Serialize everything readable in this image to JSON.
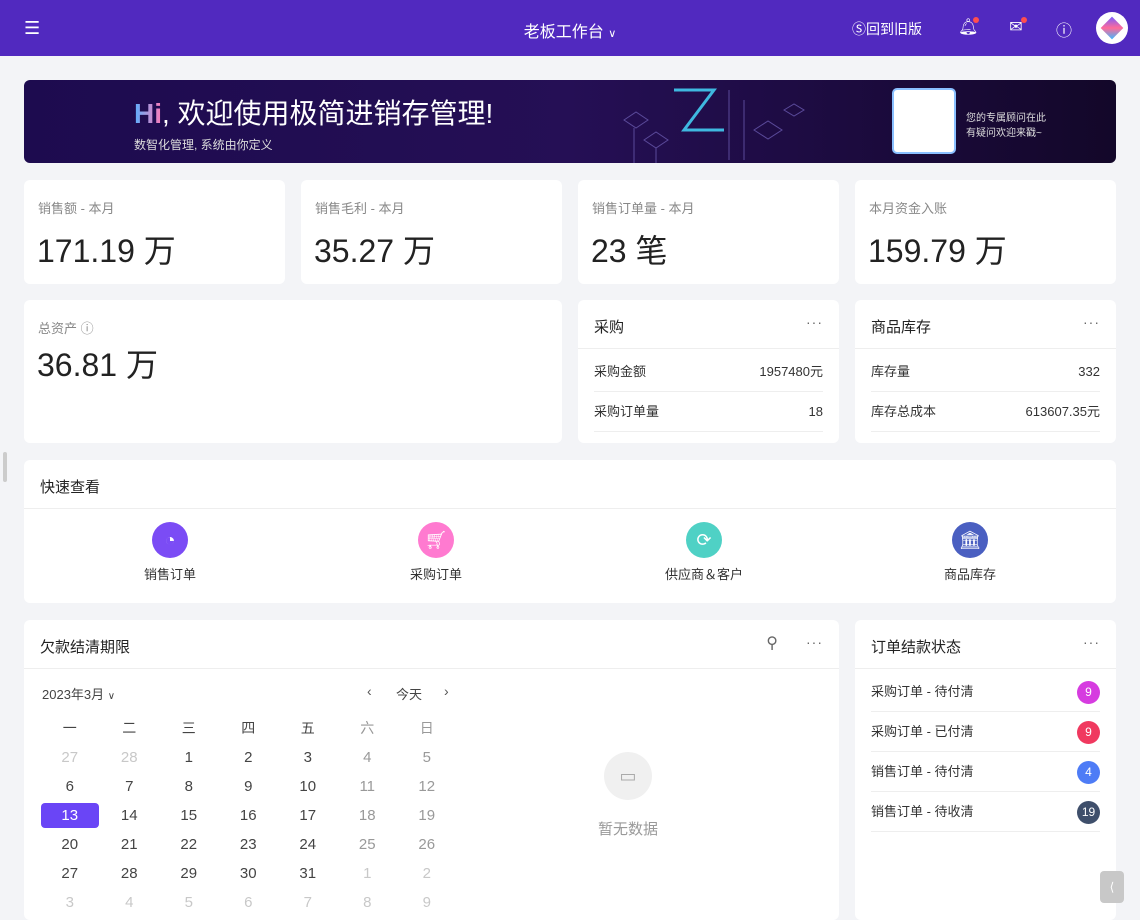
{
  "header": {
    "title": "老板工作台",
    "old_version": "回到旧版",
    "colors": {
      "bg": "#5129bf"
    }
  },
  "banner": {
    "hi": "Hi",
    "welcome": ", 欢迎使用极简进销存管理!",
    "subtitle": "数智化管理, 系统由你定义",
    "advisor_line1": "您的专属顾问在此",
    "advisor_line2": "有疑问欢迎来戳~"
  },
  "kpis": [
    {
      "label": "销售额 - 本月",
      "value": "171.19 万"
    },
    {
      "label": "销售毛利 - 本月",
      "value": "35.27 万"
    },
    {
      "label": "销售订单量 - 本月",
      "value": "23 笔"
    },
    {
      "label": "本月资金入账",
      "value": "159.79 万"
    }
  ],
  "total_assets": {
    "label": "总资产",
    "value": "36.81 万"
  },
  "purchase": {
    "title": "采购",
    "rows": [
      {
        "k": "采购金额",
        "v": "1957480元"
      },
      {
        "k": "采购订单量",
        "v": "18"
      }
    ]
  },
  "inventory": {
    "title": "商品库存",
    "rows": [
      {
        "k": "库存量",
        "v": "332"
      },
      {
        "k": "库存总成本",
        "v": "613607.35元"
      }
    ]
  },
  "quick": {
    "title": "快速查看",
    "items": [
      {
        "label": "销售订单",
        "icon": "pie-chart-icon",
        "color": "#7b4cf5"
      },
      {
        "label": "采购订单",
        "icon": "cart-icon",
        "color": "#ff7ad0"
      },
      {
        "label": "供应商＆客户",
        "icon": "refresh-icon",
        "color": "#4fd1c5"
      },
      {
        "label": "商品库存",
        "icon": "bank-icon",
        "color": "#4a5fc1"
      }
    ]
  },
  "debt": {
    "title": "欠款结清期限",
    "month": "2023年3月",
    "today": "今天",
    "empty": "暂无数据",
    "weekdays": [
      "一",
      "二",
      "三",
      "四",
      "五",
      "六",
      "日"
    ],
    "days": [
      [
        "27",
        "28",
        "1",
        "2",
        "3",
        "4",
        "5"
      ],
      [
        "6",
        "7",
        "8",
        "9",
        "10",
        "11",
        "12"
      ],
      [
        "13",
        "14",
        "15",
        "16",
        "17",
        "18",
        "19"
      ],
      [
        "20",
        "21",
        "22",
        "23",
        "24",
        "25",
        "26"
      ],
      [
        "27",
        "28",
        "29",
        "30",
        "31",
        "1",
        "2"
      ],
      [
        "3",
        "4",
        "5",
        "6",
        "7",
        "8",
        "9"
      ]
    ],
    "selected": "13"
  },
  "order_status": {
    "title": "订单结款状态",
    "rows": [
      {
        "k": "采购订单 - 待付清",
        "v": "9",
        "color": "#d63ce0"
      },
      {
        "k": "采购订单 - 已付清",
        "v": "9",
        "color": "#f0395f"
      },
      {
        "k": "销售订单 - 待付清",
        "v": "4",
        "color": "#4e7cf6"
      },
      {
        "k": "销售订单 - 待收清",
        "v": "19",
        "color": "#3f4f6b"
      }
    ]
  }
}
